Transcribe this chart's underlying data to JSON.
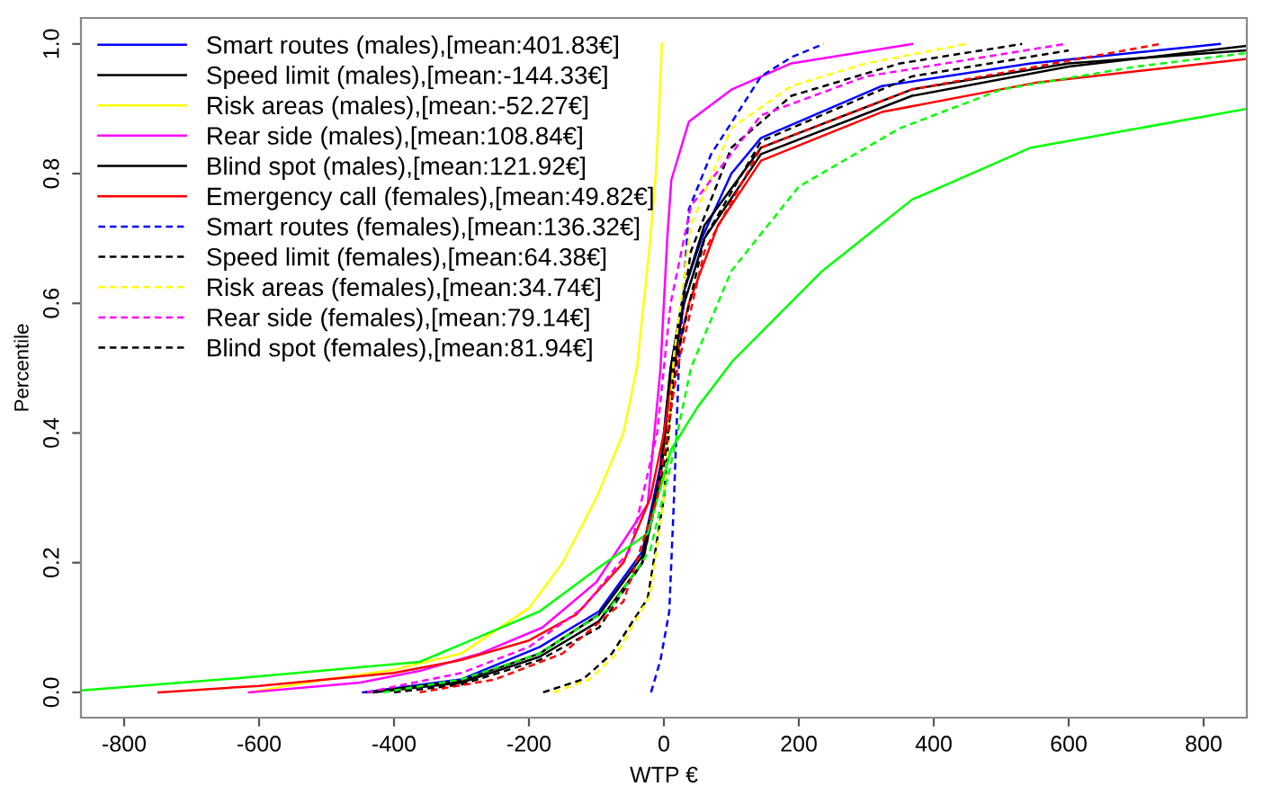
{
  "chart_data": {
    "type": "line",
    "xlabel": "WTP €",
    "ylabel": "Percentile",
    "xlim": [
      -864,
      864
    ],
    "ylim": [
      -0.039,
      1.04
    ],
    "xticks": [
      -800,
      -600,
      -400,
      -200,
      0,
      200,
      400,
      600,
      800
    ],
    "yticks": [
      {
        "value": 0,
        "label": "0.0"
      },
      0.2,
      0.4,
      0.6,
      0.8,
      {
        "value": 1,
        "label": "1.0"
      }
    ],
    "grid": false,
    "legend": "top left",
    "marker": "none",
    "series": [
      {
        "name": "Smart routes (males),[mean:401.83€]",
        "color": "#0000ff",
        "line_style": "solid",
        "x": [
          -446,
          -300,
          -184,
          -96,
          -32,
          -5,
          10,
          30,
          56,
          100,
          144,
          323,
          544,
          824
        ],
        "values": [
          0,
          0.02,
          0.07,
          0.125,
          0.217,
          0.35,
          0.5,
          0.62,
          0.7,
          0.8,
          0.855,
          0.935,
          0.97,
          1.0
        ]
      },
      {
        "name": "Speed limit (males),[mean:-144.33€]",
        "color": "#000000",
        "line_style": "solid",
        "x": [
          -430,
          -300,
          -184,
          -96,
          -32,
          -5,
          10,
          30,
          60,
          144,
          368,
          600,
          864
        ],
        "values": [
          0,
          0.015,
          0.055,
          0.11,
          0.2,
          0.33,
          0.48,
          0.6,
          0.7,
          0.83,
          0.92,
          0.965,
          0.997
        ]
      },
      {
        "name": "Risk areas (males),[mean:-52.27€]",
        "color": "#ffff00",
        "line_style": "solid",
        "x": [
          -615,
          -500,
          -400,
          -300,
          -200,
          -150,
          -100,
          -60,
          -40,
          -30,
          -20,
          -12,
          -7,
          -3
        ],
        "values": [
          0,
          0.02,
          0.035,
          0.06,
          0.13,
          0.2,
          0.3,
          0.4,
          0.5,
          0.6,
          0.7,
          0.8,
          0.9,
          1.0
        ]
      },
      {
        "name": "Rear side (males),[mean:108.84€]",
        "color": "#ff00ff",
        "line_style": "solid",
        "x": [
          -615,
          -450,
          -362,
          -272,
          -180,
          -100,
          -24,
          -5,
          5,
          11,
          37,
          101,
          189,
          368
        ],
        "values": [
          0,
          0.015,
          0.033,
          0.06,
          0.1,
          0.17,
          0.29,
          0.5,
          0.7,
          0.79,
          0.88,
          0.93,
          0.97,
          1.0
        ]
      },
      {
        "name": "Blind spot (males),[mean:121.92€]",
        "color": "#000000",
        "line_style": "solid",
        "x": [
          -440,
          -300,
          -184,
          -96,
          -32,
          -5,
          10,
          30,
          60,
          144,
          368,
          600,
          864
        ],
        "values": [
          0,
          0.018,
          0.06,
          0.12,
          0.21,
          0.34,
          0.5,
          0.62,
          0.72,
          0.84,
          0.93,
          0.97,
          0.99
        ]
      },
      {
        "name": "Emergency call (females),[mean:49.82€]",
        "color": "#ff0000",
        "line_style": "solid",
        "x": [
          -749,
          -600,
          -400,
          -300,
          -200,
          -130,
          -60,
          -20,
          0,
          15,
          37,
          80,
          144,
          323,
          550,
          864
        ],
        "values": [
          0,
          0.01,
          0.03,
          0.05,
          0.08,
          0.12,
          0.2,
          0.3,
          0.4,
          0.5,
          0.6,
          0.72,
          0.82,
          0.895,
          0.94,
          0.977
        ]
      },
      {
        "name": "Smart routes (females),[mean:136.32€]",
        "color": "#0000ff",
        "line_style": "dashed",
        "x": [
          -19,
          -5,
          8,
          15,
          22,
          37,
          70,
          101,
          144,
          190,
          237
        ],
        "values": [
          0,
          0.05,
          0.125,
          0.3,
          0.5,
          0.745,
          0.83,
          0.88,
          0.95,
          0.98,
          1.0
        ]
      },
      {
        "name": "Speed limit (females),[mean:64.38€]",
        "color": "#000000",
        "line_style": "dashed",
        "x": [
          -179,
          -120,
          -77,
          -24,
          0,
          15,
          40,
          100,
          189,
          350,
          531
        ],
        "values": [
          0,
          0.02,
          0.06,
          0.145,
          0.3,
          0.5,
          0.68,
          0.84,
          0.92,
          0.97,
          1.0
        ]
      },
      {
        "name": "Risk areas (females),[mean:34.74€]",
        "color": "#ffff00",
        "line_style": "dashed",
        "x": [
          -163,
          -110,
          -70,
          -20,
          0,
          15,
          40,
          100,
          189,
          300,
          448
        ],
        "values": [
          0,
          0.02,
          0.06,
          0.15,
          0.3,
          0.52,
          0.72,
          0.87,
          0.935,
          0.97,
          1.0
        ]
      },
      {
        "name": "Rear side (females),[mean:79.14€]",
        "color": "#ff00ff",
        "line_style": "dashed",
        "x": [
          -440,
          -300,
          -200,
          -120,
          -50,
          -10,
          10,
          40,
          144,
          300,
          595
        ],
        "values": [
          0,
          0.03,
          0.07,
          0.13,
          0.22,
          0.4,
          0.6,
          0.75,
          0.89,
          0.95,
          1.0
        ]
      },
      {
        "name": "Blind spot (females),[mean:81.94€]",
        "color": "#000000",
        "line_style": "dashed",
        "x": [
          -400,
          -300,
          -184,
          -96,
          -32,
          0,
          20,
          60,
          144,
          368,
          600
        ],
        "values": [
          0,
          0.012,
          0.05,
          0.1,
          0.2,
          0.35,
          0.52,
          0.7,
          0.85,
          0.95,
          0.99
        ]
      },
      {
        "color": "#00ff00",
        "line_style": "solid",
        "x": [
          -864,
          -629,
          -362,
          -184,
          -100,
          -24,
          11,
          50,
          101,
          235,
          368,
          544,
          864
        ],
        "values": [
          0.003,
          0.022,
          0.047,
          0.125,
          0.19,
          0.245,
          0.375,
          0.44,
          0.51,
          0.65,
          0.76,
          0.84,
          0.9
        ]
      },
      {
        "color": "#ff0000",
        "line_style": "dashed",
        "x": [
          -362,
          -250,
          -150,
          -60,
          -10,
          20,
          60,
          144,
          368,
          736
        ],
        "values": [
          0,
          0.02,
          0.06,
          0.14,
          0.3,
          0.5,
          0.68,
          0.84,
          0.93,
          1.0
        ]
      },
      {
        "color": "#00ff00",
        "line_style": "dashed",
        "x": [
          -416,
          -300,
          -184,
          -80,
          -20,
          10,
          40,
          100,
          200,
          350,
          501,
          700,
          864
        ],
        "values": [
          0,
          0.02,
          0.06,
          0.13,
          0.22,
          0.35,
          0.5,
          0.65,
          0.78,
          0.87,
          0.93,
          0.965,
          0.986
        ]
      }
    ]
  }
}
